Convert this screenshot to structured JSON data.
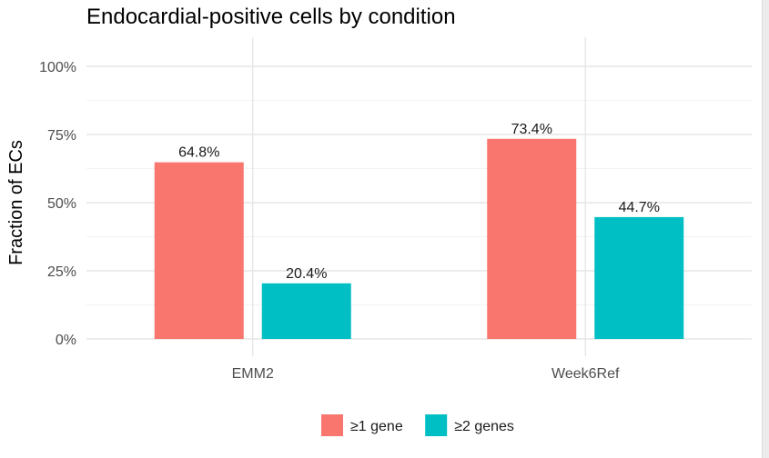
{
  "chart_data": {
    "type": "bar",
    "title": "Endocardial-positive cells by condition",
    "ylabel": "Fraction of ECs",
    "xlabel": "",
    "categories": [
      "EMM2",
      "Week6Ref"
    ],
    "series": [
      {
        "name": "≥1 gene",
        "color": "#F8766D",
        "values": [
          0.648,
          0.734
        ],
        "labels": [
          "64.8%",
          "73.4%"
        ]
      },
      {
        "name": "≥2 genes",
        "color": "#00BFC4",
        "values": [
          0.204,
          0.447
        ],
        "labels": [
          "20.4%",
          "44.7%"
        ]
      }
    ],
    "ylim": [
      0,
      1
    ],
    "yticks": [
      0,
      0.25,
      0.5,
      0.75,
      1.0
    ],
    "ytick_labels": [
      "0%",
      "25%",
      "50%",
      "75%",
      "100%"
    ],
    "grid": true,
    "legend_position": "bottom"
  }
}
